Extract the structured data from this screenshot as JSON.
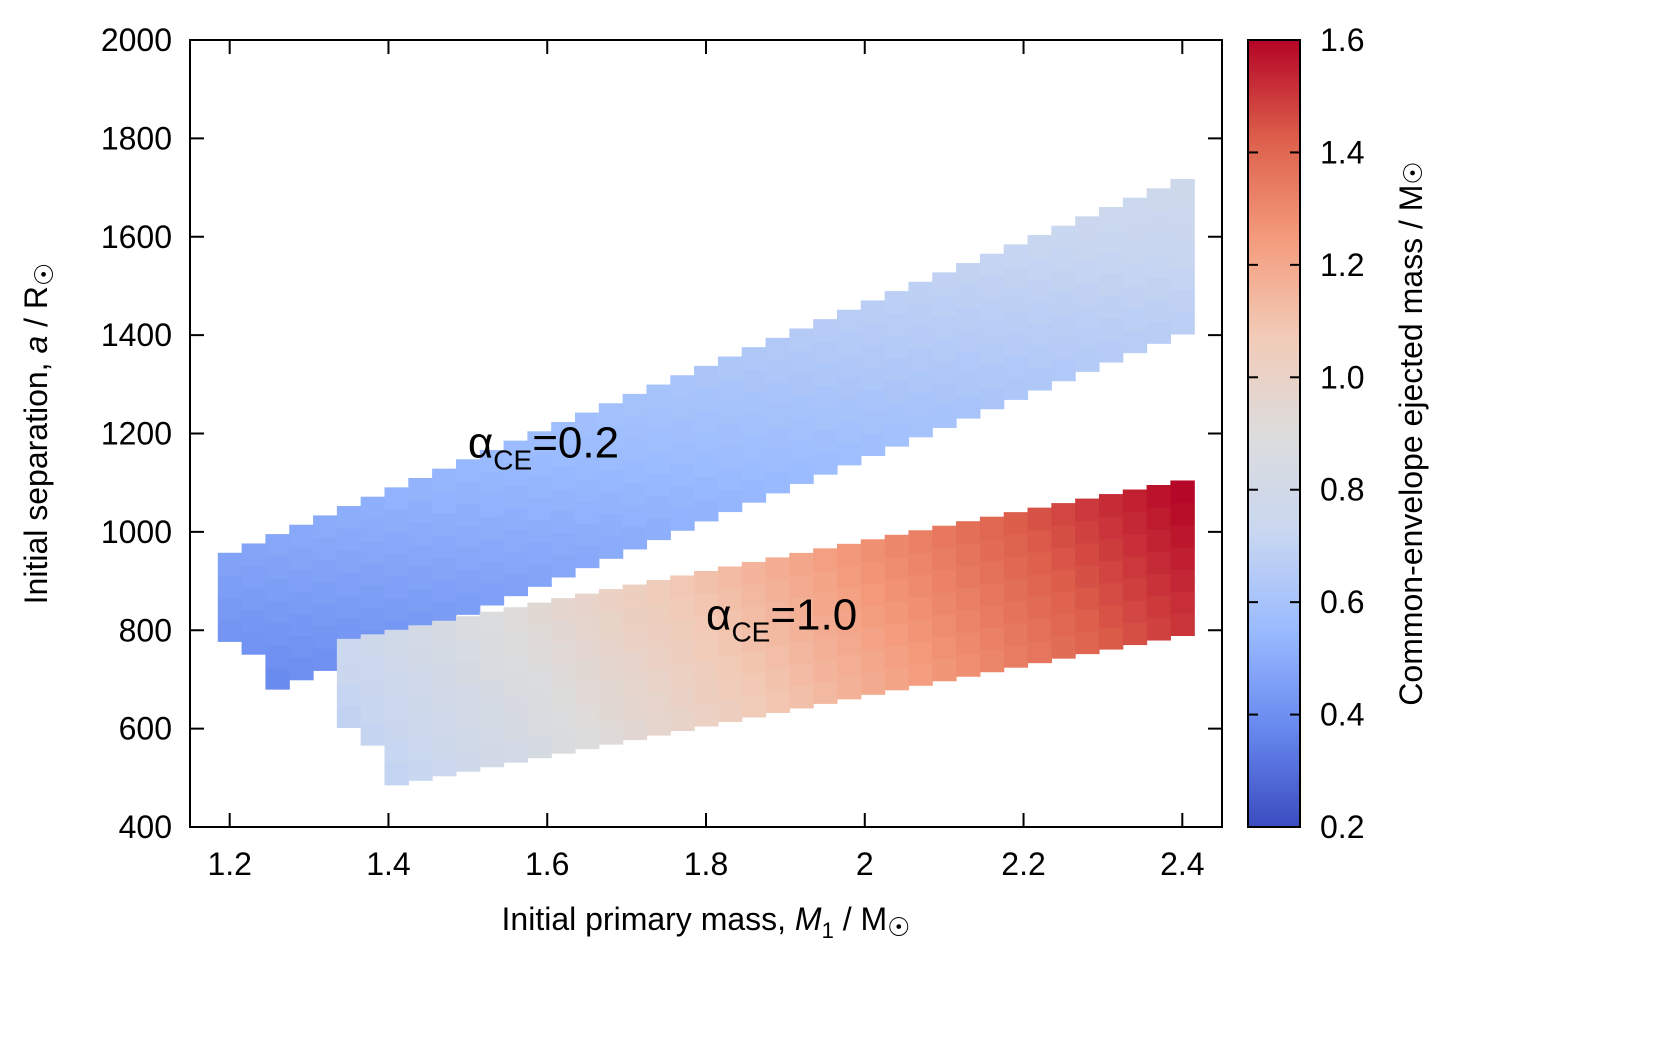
{
  "chart_data": {
    "type": "heatmap",
    "title": "",
    "xlabel": {
      "pre": "Initial primary mass, ",
      "var": "M",
      "sub": "1",
      "post": " / M",
      "sun": "☉"
    },
    "ylabel": {
      "pre": "Initial separation, ",
      "var": "a",
      "post": " / R",
      "sun": "☉"
    },
    "colorbar_label": {
      "pre": "Common-envelope ejected mass / M",
      "sun": "☉"
    },
    "xlim": [
      1.15,
      2.45
    ],
    "ylim": [
      400,
      2000
    ],
    "clim": [
      0.2,
      1.6
    ],
    "x_ticks": [
      "1.2",
      "1.4",
      "1.6",
      "1.8",
      "2",
      "2.2",
      "2.4"
    ],
    "y_ticks": [
      "400",
      "600",
      "800",
      "1000",
      "1200",
      "1400",
      "1600",
      "1800",
      "2000"
    ],
    "colorbar_ticks": [
      "0.2",
      "0.4",
      "0.6",
      "0.8",
      "1.0",
      "1.2",
      "1.4",
      "1.6"
    ],
    "colormap": [
      "#3b4cc0",
      "#6788ee",
      "#9abbff",
      "#c9d7f0",
      "#dcdcdc",
      "#f2cbb7",
      "#f49a7b",
      "#dd5f4b",
      "#b40426"
    ],
    "cell_width": 0.03,
    "cell_height": 45,
    "annotations": [
      {
        "alpha": "α",
        "sub": "CE",
        "value": "=0.2",
        "x": 1.5,
        "y": 1180
      },
      {
        "alpha": "α",
        "sub": "CE",
        "value": "=1.0",
        "x": 1.8,
        "y": 830
      }
    ],
    "series": [
      {
        "label": "αCE=0.2",
        "x_start": 1.2,
        "y_start": 800,
        "dy_per_col": 19.0,
        "half_width_x": 0.05,
        "v_start": 0.42,
        "v_end": 0.72
      },
      {
        "label": "αCE=1.0",
        "x_start": 1.35,
        "y_start": 625,
        "dy_per_col": 9.2,
        "half_width_x": 0.085,
        "v_start": 0.7,
        "v_end": 1.55
      }
    ]
  }
}
